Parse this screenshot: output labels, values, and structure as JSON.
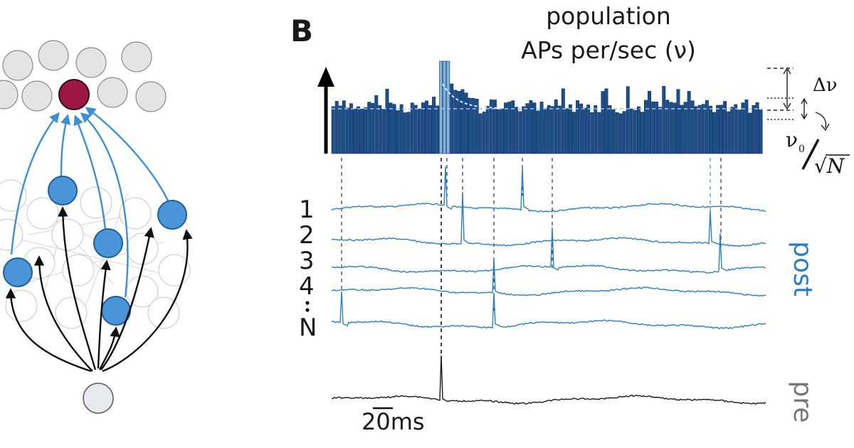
{
  "panel_label": "B",
  "title_line1": "population",
  "title_line2": "APs per/sec (ν)",
  "delta_label": "Δν",
  "nu0_label": "ν",
  "nu0_sub": "0",
  "sqrtN_label": "√N",
  "trace_labels": [
    "1",
    "2",
    "3",
    "4",
    "N"
  ],
  "post_label": "post",
  "pre_label": "pre",
  "scale_label": "20ms",
  "colors": {
    "blue": "#3b8fd6",
    "blue_dark": "#1f5f9a",
    "bar_fill": "#1d4f8c",
    "target": "#9c1746",
    "post": "#2a7fc4",
    "pre": "#777777"
  }
}
